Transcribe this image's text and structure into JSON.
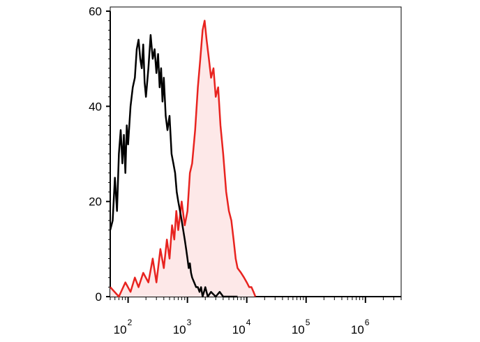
{
  "chart_data": {
    "type": "area",
    "title": "",
    "xlabel": "",
    "ylabel": "",
    "x_scale": "log10",
    "xlim": [
      50,
      4000000
    ],
    "ylim": [
      0,
      60
    ],
    "grid": false,
    "legend": "none",
    "y_ticks": [
      {
        "value": 0,
        "label": "0"
      },
      {
        "value": 20,
        "label": "20"
      },
      {
        "value": 40,
        "label": "40"
      },
      {
        "value": 60,
        "label": "60"
      }
    ],
    "x_ticks": [
      {
        "value": 100,
        "base": "10",
        "exp": "2"
      },
      {
        "value": 1000,
        "base": "10",
        "exp": "3"
      },
      {
        "value": 10000,
        "base": "10",
        "exp": "4"
      },
      {
        "value": 100000,
        "base": "10",
        "exp": "5"
      },
      {
        "value": 1000000,
        "base": "10",
        "exp": "6"
      }
    ],
    "series": [
      {
        "color": "#e8231f",
        "fill": "#fde8e8",
        "x": [
          50,
          70,
          90,
          110,
          130,
          150,
          180,
          220,
          260,
          300,
          350,
          400,
          450,
          500,
          550,
          600,
          650,
          700,
          800,
          900,
          1000,
          1100,
          1200,
          1350,
          1500,
          1650,
          1800,
          1950,
          2100,
          2300,
          2500,
          2750,
          3000,
          3300,
          3600,
          4000,
          4500,
          5000,
          5500,
          6000,
          6500,
          7000,
          8000,
          9000,
          10000,
          11000,
          12000,
          13000,
          14000
        ],
        "values": [
          2,
          0,
          3,
          1,
          4,
          2,
          5,
          3,
          8,
          3,
          10,
          6,
          12,
          8,
          15,
          12,
          18,
          14,
          20,
          15,
          18,
          26,
          28,
          35,
          44,
          50,
          56,
          58,
          54,
          50,
          46,
          48,
          42,
          44,
          36,
          30,
          22,
          18,
          16,
          12,
          8,
          6,
          5,
          4,
          3,
          2,
          2,
          1,
          0
        ]
      },
      {
        "color": "#000000",
        "fill": "none",
        "x": [
          50,
          55,
          60,
          65,
          70,
          75,
          80,
          85,
          90,
          95,
          100,
          110,
          120,
          130,
          140,
          150,
          160,
          170,
          180,
          190,
          200,
          220,
          240,
          260,
          280,
          300,
          320,
          340,
          360,
          380,
          400,
          430,
          460,
          500,
          540,
          580,
          620,
          660,
          700,
          750,
          800,
          850,
          900,
          950,
          1000,
          1050,
          1100,
          1150,
          1200,
          1300,
          1400,
          1500,
          1600,
          1700,
          1800,
          1900,
          2000,
          2200,
          2500,
          3000,
          3500,
          4000,
          5000,
          7000
        ],
        "values": [
          14,
          16,
          25,
          18,
          30,
          35,
          28,
          34,
          26,
          36,
          32,
          40,
          44,
          46,
          52,
          54,
          50,
          48,
          53,
          45,
          42,
          48,
          55,
          50,
          52,
          47,
          51,
          44,
          48,
          41,
          46,
          38,
          35,
          38,
          30,
          28,
          26,
          22,
          20,
          18,
          16,
          14,
          12,
          10,
          8,
          6,
          7,
          5,
          4,
          3,
          2,
          2,
          1,
          2,
          0,
          1,
          2,
          0,
          1,
          0,
          1,
          0,
          0,
          0
        ]
      }
    ]
  }
}
